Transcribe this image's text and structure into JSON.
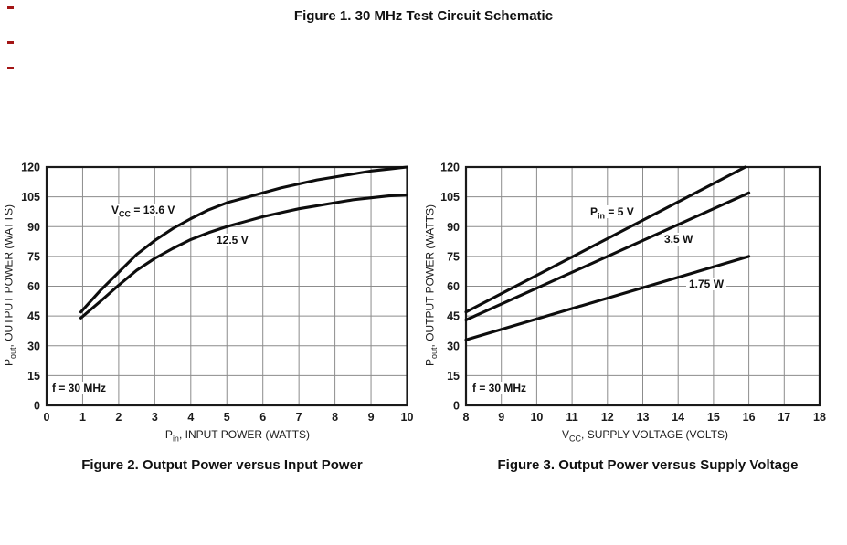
{
  "page": {
    "title": "Figure 1. 30 MHz Test Circuit Schematic"
  },
  "colors": {
    "curve": "#0d0d0d",
    "grid": "#8c8c8c",
    "border": "#1a1a1a",
    "text": "#1a1a1a",
    "margin_mark": "#a31515"
  },
  "figure2": {
    "caption": "Figure 2. Output Power versus Input Power",
    "xlabel": {
      "main": "P",
      "sub": "in",
      "rest": ", INPUT POWER (WATTS)"
    },
    "ylabel": {
      "main": "P",
      "sub": "out",
      "rest": ", OUTPUT POWER (WATTS)"
    },
    "annotations": {
      "vcc136": {
        "main": "V",
        "sub": "CC",
        "rest": " = 13.6 V"
      },
      "v125": {
        "text": "12.5 V"
      },
      "freq": {
        "text": "f = 30 MHz"
      }
    },
    "chart_data": {
      "type": "line",
      "title": "Figure 2. Output Power versus Input Power",
      "xlabel": "Pin, INPUT POWER (WATTS)",
      "ylabel": "Pout, OUTPUT POWER (WATTS)",
      "note": "f = 30 MHz",
      "xlim": [
        0,
        10
      ],
      "ylim": [
        0,
        120
      ],
      "x_ticks": [
        0,
        1,
        2,
        3,
        4,
        5,
        6,
        7,
        8,
        9,
        10
      ],
      "y_ticks": [
        0,
        15,
        30,
        45,
        60,
        75,
        90,
        105,
        120
      ],
      "grid": true,
      "legend_position": "inline-labels",
      "series": [
        {
          "name": "VCC = 13.6 V",
          "points": [
            [
              0.95,
              47
            ],
            [
              1.5,
              58
            ],
            [
              2,
              67
            ],
            [
              2.5,
              76
            ],
            [
              3,
              83
            ],
            [
              3.5,
              89
            ],
            [
              4,
              94
            ],
            [
              4.5,
              98.5
            ],
            [
              5,
              102
            ],
            [
              5.5,
              104.5
            ],
            [
              6,
              107
            ],
            [
              6.5,
              109.5
            ],
            [
              7,
              111.5
            ],
            [
              7.5,
              113.5
            ],
            [
              8,
              115
            ],
            [
              8.5,
              116.5
            ],
            [
              9,
              118
            ],
            [
              9.5,
              119
            ],
            [
              10,
              120
            ]
          ]
        },
        {
          "name": "VCC = 12.5 V",
          "points": [
            [
              0.95,
              44
            ],
            [
              1.5,
              52.5
            ],
            [
              2,
              60.5
            ],
            [
              2.5,
              68
            ],
            [
              3,
              74
            ],
            [
              3.5,
              79
            ],
            [
              4,
              83.5
            ],
            [
              4.5,
              87
            ],
            [
              5,
              90
            ],
            [
              5.5,
              92.5
            ],
            [
              6,
              95
            ],
            [
              6.5,
              97
            ],
            [
              7,
              99
            ],
            [
              7.5,
              100.5
            ],
            [
              8,
              102
            ],
            [
              8.5,
              103.5
            ],
            [
              9,
              104.5
            ],
            [
              9.5,
              105.5
            ],
            [
              10,
              106
            ]
          ]
        }
      ]
    }
  },
  "figure3": {
    "caption": "Figure 3. Output Power versus Supply Voltage",
    "xlabel": {
      "main": "V",
      "sub": "CC",
      "rest": ", SUPPLY VOLTAGE (VOLTS)"
    },
    "ylabel": {
      "main": "P",
      "sub": "out",
      "rest": ", OUTPUT POWER (WATTS)"
    },
    "annotations": {
      "pin5": {
        "main": "P",
        "sub": "in",
        "rest": " = 5 V"
      },
      "w35": {
        "text": "3.5 W"
      },
      "w175": {
        "text": "1.75 W"
      },
      "freq": {
        "text": "f = 30 MHz"
      }
    },
    "chart_data": {
      "type": "line",
      "title": "Figure 3. Output Power versus Supply Voltage",
      "xlabel": "VCC, SUPPLY VOLTAGE (VOLTS)",
      "ylabel": "Pout, OUTPUT POWER (WATTS)",
      "note": "f = 30 MHz",
      "xlim": [
        8,
        18
      ],
      "ylim": [
        0,
        120
      ],
      "x_ticks": [
        8,
        9,
        10,
        11,
        12,
        13,
        14,
        15,
        16,
        17,
        18
      ],
      "y_ticks": [
        0,
        15,
        30,
        45,
        60,
        75,
        90,
        105,
        120
      ],
      "grid": true,
      "legend_position": "inline-labels",
      "series": [
        {
          "name": "Pin = 5 V",
          "points": [
            [
              8,
              47
            ],
            [
              15.9,
              120
            ]
          ]
        },
        {
          "name": "Pin = 3.5 W",
          "points": [
            [
              8,
              43
            ],
            [
              16,
              107
            ]
          ]
        },
        {
          "name": "Pin = 1.75 W",
          "points": [
            [
              8,
              33
            ],
            [
              16,
              75
            ]
          ]
        }
      ]
    }
  }
}
